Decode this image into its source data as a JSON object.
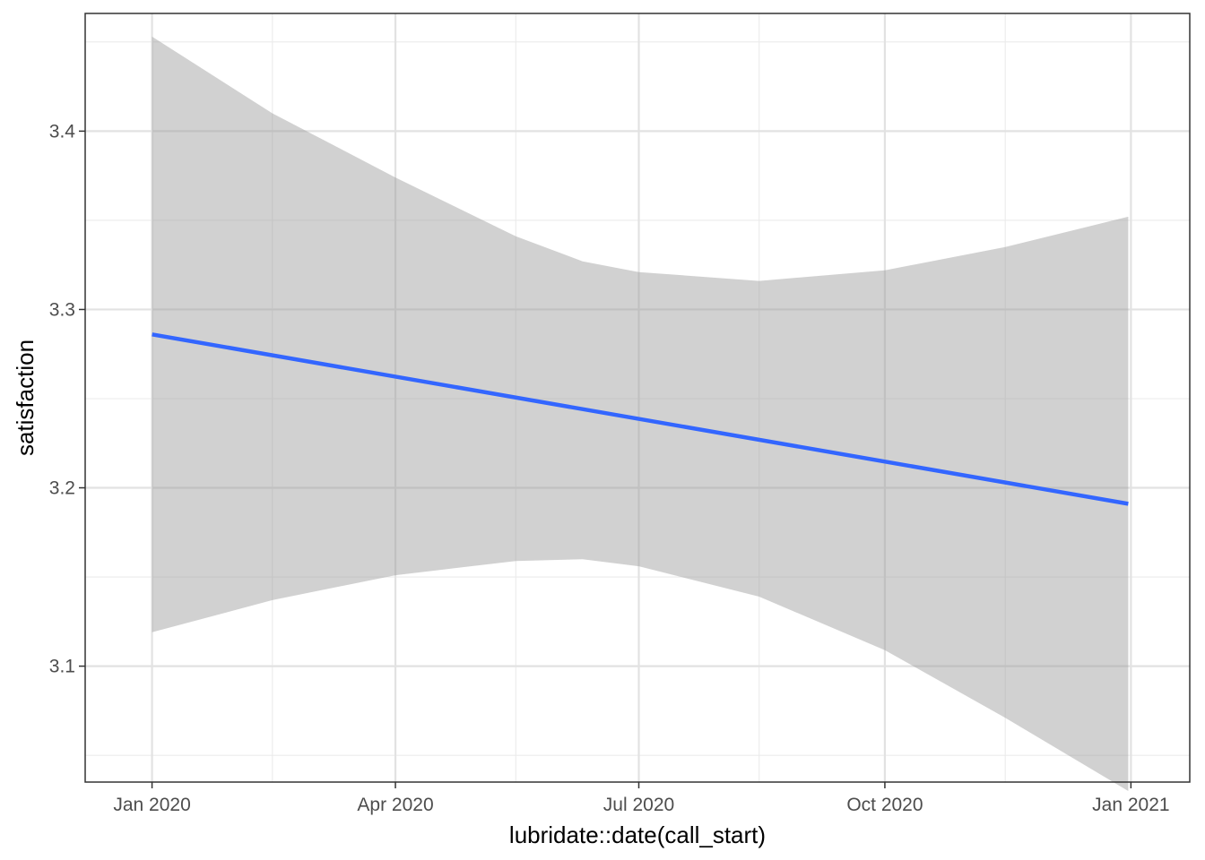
{
  "chart_data": {
    "type": "line",
    "title": "",
    "xlabel": "lubridate::date(call_start)",
    "ylabel": "satisfaction",
    "x_axis_type": "date",
    "xlim": [
      "2019-12-07",
      "2021-01-23"
    ],
    "ylim": [
      3.035,
      3.466
    ],
    "x_ticks": [
      {
        "date": "2020-01-01",
        "label": "Jan 2020"
      },
      {
        "date": "2020-04-01",
        "label": "Apr 2020"
      },
      {
        "date": "2020-07-01",
        "label": "Jul 2020"
      },
      {
        "date": "2020-10-01",
        "label": "Oct 2020"
      },
      {
        "date": "2021-01-01",
        "label": "Jan 2021"
      }
    ],
    "x_minor_ticks": [
      "2020-02-15",
      "2020-05-16",
      "2020-08-15",
      "2020-11-15"
    ],
    "y_ticks": [
      {
        "value": 3.1,
        "label": "3.1"
      },
      {
        "value": 3.2,
        "label": "3.2"
      },
      {
        "value": 3.3,
        "label": "3.3"
      },
      {
        "value": 3.4,
        "label": "3.4"
      }
    ],
    "y_minor_ticks": [
      3.05,
      3.15,
      3.25,
      3.35,
      3.45
    ],
    "grid": true,
    "legend": "none",
    "series": [
      {
        "x": [
          "2020-01-01",
          "2020-12-31"
        ],
        "y": [
          3.286,
          3.191
        ],
        "color": "#3366ff",
        "ribbon_color": "#999999",
        "ribbon_opacity": 0.45,
        "ribbon_x": [
          "2020-01-01",
          "2020-02-15",
          "2020-04-01",
          "2020-05-16",
          "2020-06-10",
          "2020-07-01",
          "2020-08-15",
          "2020-10-01",
          "2020-11-15",
          "2020-12-31"
        ],
        "ribbon_lower": [
          3.119,
          3.137,
          3.151,
          3.159,
          3.16,
          3.156,
          3.139,
          3.109,
          3.071,
          3.03
        ],
        "ribbon_upper": [
          3.453,
          3.41,
          3.374,
          3.341,
          3.327,
          3.321,
          3.316,
          3.322,
          3.335,
          3.352
        ]
      }
    ]
  }
}
